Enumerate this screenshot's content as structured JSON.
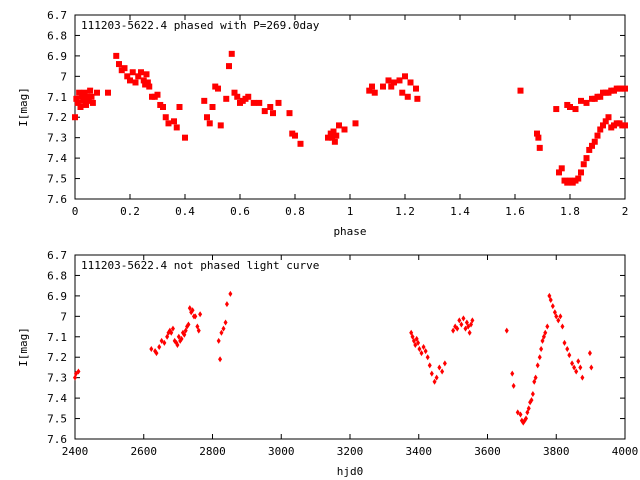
{
  "chart_data": [
    {
      "type": "scatter",
      "title": "111203-5622.4 phased with P=269.0day",
      "xlabel": "phase",
      "ylabel": "I[mag]",
      "xlim": [
        0,
        2
      ],
      "ylim": [
        7.6,
        6.7
      ],
      "y_inverted": true,
      "xticks": [
        "0",
        "0.2",
        "0.4",
        "0.6",
        "0.8",
        "1",
        "1.2",
        "1.4",
        "1.6",
        "1.8",
        "2"
      ],
      "yticks": [
        "6.7",
        "6.8",
        "6.9",
        "7",
        "7.1",
        "7.2",
        "7.3",
        "7.4",
        "7.5",
        "7.6"
      ],
      "marker_color": "#ff0000",
      "series": [
        {
          "x": [
            0.0,
            0.005,
            0.01,
            0.015,
            0.02,
            0.025,
            0.03,
            0.035,
            0.04,
            0.045,
            0.05,
            0.055,
            0.06,
            0.065,
            0.08,
            0.12,
            0.15,
            0.16,
            0.17,
            0.18,
            0.19,
            0.2,
            0.21,
            0.22,
            0.23,
            0.24,
            0.25,
            0.255,
            0.26,
            0.265,
            0.27,
            0.28,
            0.29,
            0.3,
            0.31,
            0.32,
            0.33,
            0.34,
            0.36,
            0.37,
            0.38,
            0.4,
            0.47,
            0.48,
            0.49,
            0.5,
            0.51,
            0.52,
            0.53,
            0.55,
            0.56,
            0.57,
            0.58,
            0.59,
            0.6,
            0.61,
            0.62,
            0.63,
            0.65,
            0.67,
            0.69,
            0.71,
            0.72,
            0.74,
            0.78,
            0.79,
            0.8,
            0.82,
            0.92,
            0.93,
            0.935,
            0.94,
            0.945,
            0.95,
            0.96,
            0.98,
            1.02,
            1.07,
            1.08,
            1.09,
            1.12,
            1.14,
            1.15,
            1.16,
            1.18,
            1.19,
            1.2,
            1.21,
            1.22,
            1.24,
            1.245,
            1.62,
            1.68,
            1.685,
            1.69,
            1.75,
            1.76,
            1.77,
            1.78,
            1.79,
            1.8,
            1.81,
            1.82,
            1.83,
            1.84,
            1.85,
            1.86,
            1.87,
            1.88,
            1.89,
            1.9,
            1.91,
            1.92,
            1.93,
            1.94,
            1.95,
            1.96,
            1.97,
            1.98,
            1.99,
            2.0,
            1.79,
            1.8,
            1.82,
            1.84,
            1.86,
            1.88,
            1.89,
            1.9,
            1.91,
            1.92,
            1.93,
            1.94,
            1.95,
            1.96,
            1.97,
            1.98,
            1.99,
            2.0
          ],
          "y": [
            7.2,
            7.11,
            7.13,
            7.08,
            7.15,
            7.1,
            7.12,
            7.08,
            7.14,
            7.1,
            7.12,
            7.07,
            7.1,
            7.13,
            7.08,
            7.08,
            6.9,
            6.94,
            6.97,
            6.96,
            7.0,
            7.02,
            6.98,
            7.03,
            7.0,
            6.98,
            7.02,
            7.04,
            6.99,
            7.03,
            7.05,
            7.1,
            7.1,
            7.09,
            7.14,
            7.15,
            7.2,
            7.23,
            7.22,
            7.25,
            7.15,
            7.3,
            7.12,
            7.2,
            7.23,
            7.15,
            7.05,
            7.06,
            7.24,
            7.11,
            6.95,
            6.89,
            7.08,
            7.1,
            7.13,
            7.12,
            7.11,
            7.1,
            7.13,
            7.13,
            7.17,
            7.15,
            7.18,
            7.13,
            7.18,
            7.28,
            7.29,
            7.33,
            7.3,
            7.28,
            7.3,
            7.27,
            7.32,
            7.29,
            7.24,
            7.26,
            7.23,
            7.07,
            7.05,
            7.08,
            7.05,
            7.02,
            7.05,
            7.03,
            7.02,
            7.08,
            7.0,
            7.1,
            7.03,
            7.06,
            7.11,
            7.07,
            7.28,
            7.3,
            7.35,
            7.16,
            7.47,
            7.45,
            7.51,
            7.52,
            7.51,
            7.52,
            7.51,
            7.5,
            7.47,
            7.43,
            7.4,
            7.36,
            7.34,
            7.32,
            7.29,
            7.26,
            7.24,
            7.22,
            7.2,
            7.25,
            7.24,
            7.23,
            7.23,
            7.24,
            7.24,
            7.14,
            7.15,
            7.16,
            7.12,
            7.13,
            7.11,
            7.11,
            7.1,
            7.1,
            7.08,
            7.08,
            7.08,
            7.07,
            7.07,
            7.06,
            7.06,
            7.06,
            7.06
          ]
        }
      ]
    },
    {
      "type": "scatter",
      "title": "111203-5622.4 not phased light curve",
      "xlabel": "hjd0",
      "ylabel": "I[mag]",
      "xlim": [
        2400,
        4000
      ],
      "ylim": [
        7.6,
        6.7
      ],
      "y_inverted": true,
      "xticks": [
        "2400",
        "2600",
        "2800",
        "3000",
        "3200",
        "3400",
        "3600",
        "3800",
        "4000"
      ],
      "yticks": [
        "6.7",
        "6.8",
        "6.9",
        "7",
        "7.1",
        "7.2",
        "7.3",
        "7.4",
        "7.5",
        "7.6"
      ],
      "marker_color": "#ff0000",
      "series": [
        {
          "x": [
            2400,
            2403,
            2410,
            2622,
            2633,
            2637,
            2645,
            2652,
            2660,
            2668,
            2672,
            2676,
            2680,
            2685,
            2690,
            2695,
            2698,
            2702,
            2706,
            2710,
            2714,
            2718,
            2722,
            2726,
            2730,
            2734,
            2738,
            2742,
            2746,
            2750,
            2756,
            2760,
            2764,
            2818,
            2822,
            2826,
            2832,
            2838,
            2842,
            2852,
            3378,
            3382,
            3386,
            3390,
            3394,
            3398,
            3402,
            3408,
            3414,
            3420,
            3426,
            3432,
            3438,
            3446,
            3452,
            3460,
            3468,
            3476,
            3500,
            3506,
            3512,
            3518,
            3524,
            3530,
            3536,
            3540,
            3544,
            3548,
            3552,
            3556,
            3656,
            3672,
            3676,
            3688,
            3696,
            3700,
            3704,
            3708,
            3712,
            3716,
            3720,
            3724,
            3728,
            3732,
            3736,
            3740,
            3746,
            3752,
            3756,
            3760,
            3764,
            3768,
            3774,
            3780,
            3784,
            3790,
            3796,
            3800,
            3806,
            3812,
            3818,
            3824,
            3832,
            3838,
            3846,
            3852,
            3858,
            3864,
            3870,
            3876,
            3898,
            3902
          ],
          "y": [
            7.3,
            7.28,
            7.27,
            7.16,
            7.17,
            7.18,
            7.15,
            7.12,
            7.13,
            7.1,
            7.08,
            7.07,
            7.08,
            7.06,
            7.12,
            7.13,
            7.14,
            7.1,
            7.12,
            7.11,
            7.08,
            7.09,
            7.07,
            7.05,
            7.04,
            6.96,
            6.98,
            6.97,
            7.0,
            7.0,
            7.05,
            7.07,
            6.99,
            7.12,
            7.21,
            7.08,
            7.06,
            7.03,
            6.94,
            6.89,
            7.08,
            7.1,
            7.12,
            7.14,
            7.11,
            7.13,
            7.16,
            7.18,
            7.15,
            7.17,
            7.2,
            7.24,
            7.28,
            7.32,
            7.3,
            7.25,
            7.27,
            7.23,
            7.07,
            7.05,
            7.06,
            7.02,
            7.04,
            7.01,
            7.06,
            7.03,
            7.05,
            7.08,
            7.04,
            7.02,
            7.07,
            7.28,
            7.34,
            7.47,
            7.48,
            7.51,
            7.52,
            7.51,
            7.5,
            7.47,
            7.45,
            7.42,
            7.41,
            7.38,
            7.32,
            7.3,
            7.24,
            7.2,
            7.16,
            7.12,
            7.1,
            7.08,
            7.05,
            6.9,
            6.92,
            6.95,
            6.98,
            7.0,
            7.02,
            7.0,
            7.05,
            7.13,
            7.16,
            7.19,
            7.23,
            7.25,
            7.27,
            7.22,
            7.25,
            7.3,
            7.18,
            7.25
          ]
        }
      ]
    }
  ]
}
